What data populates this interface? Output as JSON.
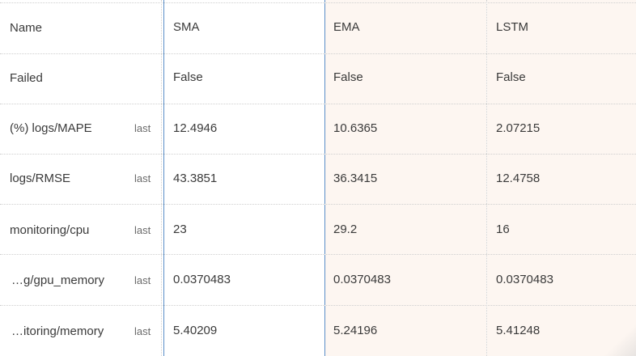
{
  "header": {
    "name_label": "Name",
    "experiments": [
      {
        "label": "SMA"
      },
      {
        "label": "EMA"
      },
      {
        "label": "LSTM"
      }
    ]
  },
  "rows": [
    {
      "name": "Failed",
      "agg": "",
      "values": [
        "False",
        "False",
        "False"
      ]
    },
    {
      "name": "(%) logs/MAPE",
      "agg": "last",
      "values": [
        "12.4946",
        "10.6365",
        "2.07215"
      ]
    },
    {
      "name": "logs/RMSE",
      "agg": "last",
      "values": [
        "43.3851",
        "36.3415",
        "12.4758"
      ]
    },
    {
      "name": "monitoring/cpu",
      "agg": "last",
      "values": [
        "23",
        "29.2",
        "16"
      ]
    },
    {
      "name": "…g/gpu_memory",
      "agg": "last",
      "values": [
        "0.0370483",
        "0.0370483",
        "0.0370483"
      ]
    },
    {
      "name": "…itoring/memory",
      "agg": "last",
      "values": [
        "5.40209",
        "5.24196",
        "5.41248"
      ]
    }
  ],
  "colors": {
    "highlight_column_bg": "#fdf6f1",
    "selected_border": "#5b8fc7",
    "grid_line": "#cfcfcf"
  }
}
